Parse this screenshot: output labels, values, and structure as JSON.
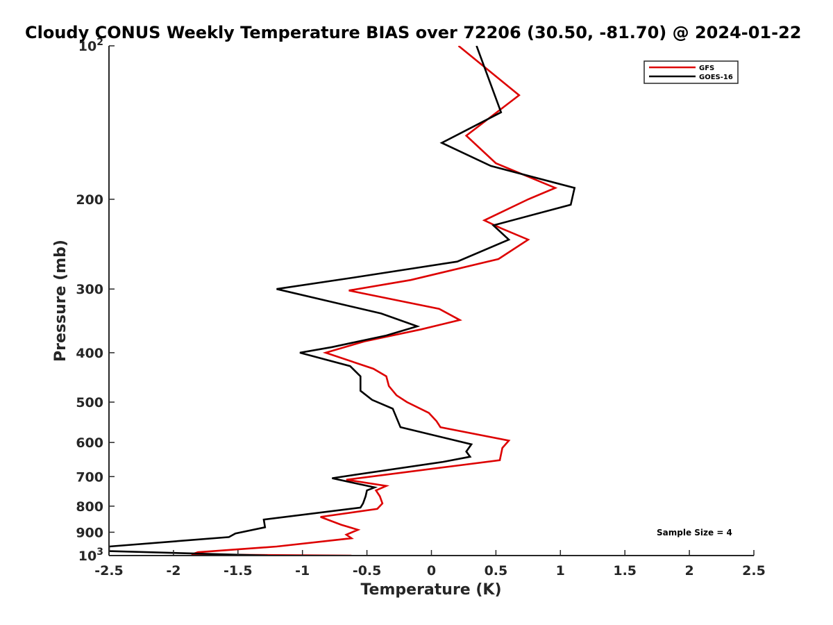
{
  "chart_data": {
    "type": "line",
    "title": "Cloudy CONUS Weekly Temperature BIAS over 72206 (30.50, -81.70) @ 2024-01-22",
    "xlabel": "Temperature (K)",
    "ylabel": "Pressure (mb)",
    "xlim": [
      -2.5,
      2.5
    ],
    "ylim": [
      100,
      1000
    ],
    "yscale": "log",
    "y_reversed": true,
    "xticks": [
      -2.5,
      -2,
      -1.5,
      -1,
      -0.5,
      0,
      0.5,
      1,
      1.5,
      2,
      2.5
    ],
    "xtick_labels": [
      "-2.5",
      "-2",
      "-1.5",
      "-1",
      "-0.5",
      "0",
      "0.5",
      "1",
      "1.5",
      "2",
      "2.5"
    ],
    "yticks": [
      100,
      200,
      300,
      400,
      500,
      600,
      700,
      800,
      900,
      1000
    ],
    "ytick_labels": [
      {
        "base": "10",
        "exp": "2"
      },
      {
        "base": "200"
      },
      {
        "base": "300"
      },
      {
        "base": "400"
      },
      {
        "base": "500"
      },
      {
        "base": "600"
      },
      {
        "base": "700"
      },
      {
        "base": "800"
      },
      {
        "base": "900"
      },
      {
        "base": "10",
        "exp": "3"
      }
    ],
    "legend": {
      "position": "top-right",
      "entries": [
        "GFS",
        "GOES-16"
      ]
    },
    "annotation": "Sample Size = 4",
    "series": [
      {
        "name": "GFS",
        "color": "#dd0000",
        "points": [
          [
            0.21,
            100
          ],
          [
            0.68,
            125
          ],
          [
            0.27,
            150
          ],
          [
            0.5,
            170
          ],
          [
            0.96,
            190
          ],
          [
            0.75,
            200
          ],
          [
            0.41,
            220
          ],
          [
            0.54,
            228
          ],
          [
            0.75,
            240
          ],
          [
            0.52,
            262
          ],
          [
            -0.16,
            288
          ],
          [
            -0.64,
            302
          ],
          [
            0.06,
            328
          ],
          [
            0.22,
            345
          ],
          [
            -0.08,
            360
          ],
          [
            -0.52,
            380
          ],
          [
            -0.82,
            400
          ],
          [
            -0.45,
            430
          ],
          [
            -0.35,
            445
          ],
          [
            -0.33,
            465
          ],
          [
            -0.27,
            485
          ],
          [
            -0.19,
            500
          ],
          [
            -0.02,
            525
          ],
          [
            0.04,
            545
          ],
          [
            0.07,
            560
          ],
          [
            0.6,
            595
          ],
          [
            0.55,
            615
          ],
          [
            0.53,
            650
          ],
          [
            0.22,
            665
          ],
          [
            -0.66,
            710
          ],
          [
            -0.35,
            730
          ],
          [
            -0.43,
            745
          ],
          [
            -0.4,
            765
          ],
          [
            -0.38,
            790
          ],
          [
            -0.42,
            810
          ],
          [
            -0.86,
            840
          ],
          [
            -0.7,
            870
          ],
          [
            -0.57,
            890
          ],
          [
            -0.66,
            910
          ],
          [
            -0.62,
            925
          ],
          [
            -1.2,
            960
          ],
          [
            -1.81,
            985
          ],
          [
            -1.86,
            995
          ],
          [
            -0.62,
            1000
          ]
        ]
      },
      {
        "name": "GOES-16",
        "color": "#000000",
        "points": [
          [
            0.35,
            100
          ],
          [
            0.54,
            135
          ],
          [
            0.08,
            155
          ],
          [
            0.46,
            172
          ],
          [
            1.11,
            190
          ],
          [
            1.08,
            205
          ],
          [
            0.48,
            225
          ],
          [
            0.6,
            240
          ],
          [
            0.2,
            265
          ],
          [
            -0.61,
            285
          ],
          [
            -1.2,
            300
          ],
          [
            -0.39,
            335
          ],
          [
            -0.11,
            355
          ],
          [
            -0.35,
            370
          ],
          [
            -0.77,
            390
          ],
          [
            -1.02,
            400
          ],
          [
            -0.63,
            425
          ],
          [
            -0.55,
            445
          ],
          [
            -0.55,
            475
          ],
          [
            -0.46,
            495
          ],
          [
            -0.3,
            515
          ],
          [
            -0.24,
            560
          ],
          [
            0.31,
            605
          ],
          [
            0.27,
            625
          ],
          [
            0.3,
            640
          ],
          [
            0.09,
            655
          ],
          [
            -0.77,
            705
          ],
          [
            -0.44,
            735
          ],
          [
            -0.5,
            745
          ],
          [
            -0.51,
            765
          ],
          [
            -0.53,
            790
          ],
          [
            -0.55,
            805
          ],
          [
            -1.3,
            850
          ],
          [
            -1.29,
            880
          ],
          [
            -1.52,
            905
          ],
          [
            -1.57,
            920
          ],
          [
            -2.5,
            960
          ],
          [
            -2.5,
            980
          ],
          [
            -1.27,
            1000
          ]
        ]
      }
    ]
  }
}
